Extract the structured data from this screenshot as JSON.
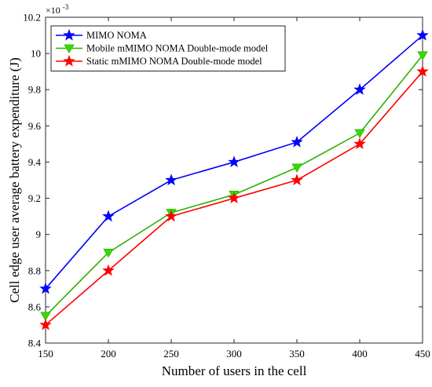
{
  "chart_data": {
    "type": "line",
    "xlabel": "Number of users in the cell",
    "ylabel": "Cell edge user average battery expenditure (J)",
    "y_exponent_label": "×10",
    "y_exponent_power": "-3",
    "x": [
      150,
      200,
      250,
      300,
      350,
      400,
      450
    ],
    "xlim": [
      150,
      450
    ],
    "ylim": [
      8.4,
      10.2
    ],
    "x_ticks": [
      "150",
      "200",
      "250",
      "300",
      "350",
      "400",
      "450"
    ],
    "y_ticks": [
      "8.4",
      "8.6",
      "8.8",
      "9",
      "9.2",
      "9.4",
      "9.6",
      "9.8",
      "10",
      "10.2"
    ],
    "x_tick_values": [
      150,
      200,
      250,
      300,
      350,
      400,
      450
    ],
    "y_tick_values": [
      8.4,
      8.6,
      8.8,
      9.0,
      9.2,
      9.4,
      9.6,
      9.8,
      10.0,
      10.2
    ],
    "grid": false,
    "legend_position": "top-left",
    "series": [
      {
        "name": "MIMO NOMA",
        "color": "#0000ff",
        "marker": "star",
        "values": [
          8.7,
          9.1,
          9.3,
          9.4,
          9.51,
          9.8,
          10.1
        ]
      },
      {
        "name": "Mobile mMIMO NOMA Double-mode model",
        "color": "#2db200",
        "marker_fill": "#33dd00",
        "marker": "triangle-down",
        "values": [
          8.55,
          8.9,
          9.12,
          9.22,
          9.37,
          9.56,
          9.99
        ]
      },
      {
        "name": "Static mMIMO NOMA Double-mode model",
        "color": "#ff0000",
        "marker": "star",
        "values": [
          8.5,
          8.8,
          9.1,
          9.2,
          9.3,
          9.5,
          9.9
        ]
      }
    ]
  }
}
